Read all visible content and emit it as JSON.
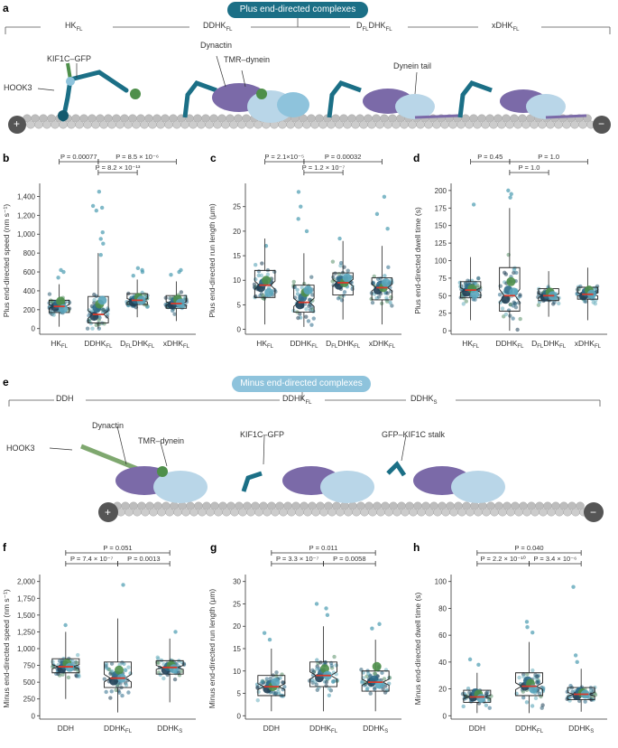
{
  "colors": {
    "teal": "#1b6f86",
    "teal_dark": "#145a6e",
    "teal_light": "#8ec3dc",
    "purple": "#7b6aa8",
    "light_blue": "#b9d6e8",
    "green": "#4e8f4a",
    "mt": "#bdbdbd",
    "red_median": "#d83a2a",
    "point_colors": [
      "#2e6b8a",
      "#4a9bb0",
      "#2f5f74",
      "#5a8f6a",
      "#1f3f55",
      "#6aaebd"
    ]
  },
  "panel_a": {
    "letter": "a",
    "banner": "Plus end-directed complexes",
    "group_labels": [
      "HK",
      "DDHK",
      "D",
      "xDHK"
    ],
    "group_label_subs": [
      "FL",
      "FL",
      "DHK",
      "FL"
    ],
    "group_label_d_sub": "FL",
    "annotations": [
      "KIF1C–GFP",
      "HOOK3",
      "Dynactin",
      "TMR–dynein",
      "Dynein tail"
    ],
    "plus_sign": "+",
    "minus_sign": "−"
  },
  "panel_e": {
    "letter": "e",
    "banner": "Minus end-directed complexes",
    "group_labels": [
      "DDH",
      "DDHK",
      "DDHK"
    ],
    "group_label_subs": [
      "",
      "FL",
      "S"
    ],
    "annotations": [
      "Dynactin",
      "TMR–dynein",
      "KIF1C–GFP",
      "GFP–KIF1C stalk",
      "HOOK3"
    ],
    "plus_sign": "+",
    "minus_sign": "−"
  },
  "chart_data": [
    {
      "id": "b",
      "type": "box",
      "ylabel": "Plus end-directed speed (nm s⁻¹)",
      "ylim": [
        -60,
        1500
      ],
      "yticks": [
        0,
        200,
        400,
        600,
        800,
        1000,
        1200,
        1400
      ],
      "ytick_labels": [
        "0",
        "200",
        "400",
        "600",
        "800",
        "1,000",
        "1,200",
        "1,400"
      ],
      "categories": [
        "HK",
        "DDHK",
        "D",
        "xDHK"
      ],
      "category_subs": [
        "FL",
        "FL",
        "DHK",
        "FL"
      ],
      "category_d_sub": "FL",
      "box_stats": [
        {
          "q1": 170,
          "median": 235,
          "q3": 300,
          "wlo": 20,
          "whi": 470,
          "mean": 245
        },
        {
          "q1": 60,
          "median": 150,
          "q3": 340,
          "wlo": 0,
          "whi": 800,
          "mean": 200
        },
        {
          "q1": 255,
          "median": 300,
          "q3": 370,
          "wlo": 120,
          "whi": 520,
          "mean": 310
        },
        {
          "q1": 215,
          "median": 265,
          "q3": 350,
          "wlo": 80,
          "whi": 500,
          "mean": 280
        }
      ],
      "outliers": [
        [
          600,
          620,
          540
        ],
        [
          1450,
          1300,
          1280,
          1250,
          950,
          900,
          1020,
          780
        ],
        [
          620,
          600,
          640,
          560
        ],
        [
          620,
          600,
          570
        ]
      ],
      "replicate_means": [
        [
          230,
          260,
          290,
          210
        ],
        [
          130,
          220,
          260,
          300
        ],
        [
          280,
          310,
          330,
          300
        ],
        [
          250,
          290,
          310,
          270
        ]
      ],
      "comparisons": [
        {
          "from": 0,
          "to": 1,
          "level": 0,
          "label": "P = 0.00077"
        },
        {
          "from": 1,
          "to": 3,
          "level": 0,
          "label": "P = 8.5 × 10⁻⁶"
        },
        {
          "from": 1,
          "to": 2,
          "level": 1,
          "label": "P = 8.2 × 10⁻¹³"
        }
      ]
    },
    {
      "id": "c",
      "type": "box",
      "ylabel": "Plus end-directed run length (μm)",
      "ylim": [
        -1,
        29
      ],
      "yticks": [
        0,
        5,
        10,
        15,
        20,
        25
      ],
      "ytick_labels": [
        "0",
        "5",
        "10",
        "15",
        "20",
        "25"
      ],
      "categories": [
        "HK",
        "DDHK",
        "D",
        "xDHK"
      ],
      "category_subs": [
        "FL",
        "FL",
        "DHK",
        "FL"
      ],
      "category_d_sub": "FL",
      "box_stats": [
        {
          "q1": 6.5,
          "median": 9,
          "q3": 12,
          "wlo": 1,
          "whi": 18.5,
          "mean": 9
        },
        {
          "q1": 3.5,
          "median": 5.5,
          "q3": 9,
          "wlo": 0.5,
          "whi": 15.5,
          "mean": 6.5
        },
        {
          "q1": 7,
          "median": 9.5,
          "q3": 11.5,
          "wlo": 2,
          "whi": 18,
          "mean": 9.5
        },
        {
          "q1": 6,
          "median": 8.5,
          "q3": 10.5,
          "wlo": 1,
          "whi": 17,
          "mean": 8.5
        }
      ],
      "outliers": [
        [
          17
        ],
        [
          28,
          25,
          22.5,
          20
        ],
        [
          18.5
        ],
        [
          27,
          23.5,
          20.5
        ]
      ],
      "replicate_means": [
        [
          8.5,
          9.5,
          10,
          7.5
        ],
        [
          5,
          6.5,
          7.5,
          8
        ],
        [
          9,
          10,
          9.5,
          10.5
        ],
        [
          8,
          9,
          8.5,
          9.5
        ]
      ],
      "comparisons": [
        {
          "from": 0,
          "to": 1,
          "level": 0,
          "label": "P = 2.1×10⁻⁵"
        },
        {
          "from": 1,
          "to": 3,
          "level": 0,
          "label": "P = 0.00032"
        },
        {
          "from": 1,
          "to": 2,
          "level": 1,
          "label": "P = 1.2 × 10⁻⁷"
        }
      ]
    },
    {
      "id": "d",
      "type": "box",
      "ylabel": "Plus end-directed dwell time (s)",
      "ylim": [
        -5,
        205
      ],
      "yticks": [
        0,
        25,
        50,
        75,
        100,
        125,
        150,
        175,
        200
      ],
      "ytick_labels": [
        "0",
        "25",
        "50",
        "75",
        "100",
        "125",
        "150",
        "175",
        "200"
      ],
      "categories": [
        "HK",
        "DDHK",
        "D",
        "xDHK"
      ],
      "category_subs": [
        "FL",
        "FL",
        "DHK",
        "FL"
      ],
      "category_d_sub": "FL",
      "box_stats": [
        {
          "q1": 47,
          "median": 58,
          "q3": 70,
          "wlo": 15,
          "whi": 105,
          "mean": 58
        },
        {
          "q1": 28,
          "median": 50,
          "q3": 90,
          "wlo": 0,
          "whi": 175,
          "mean": 60
        },
        {
          "q1": 43,
          "median": 50,
          "q3": 60,
          "wlo": 20,
          "whi": 85,
          "mean": 52
        },
        {
          "q1": 45,
          "median": 52,
          "q3": 62,
          "wlo": 15,
          "whi": 90,
          "mean": 54
        }
      ],
      "outliers": [
        [
          180
        ],
        [
          200,
          195,
          190
        ],
        [],
        []
      ],
      "replicate_means": [
        [
          55,
          62,
          60,
          52
        ],
        [
          45,
          58,
          70,
          55
        ],
        [
          48,
          52,
          55,
          50
        ],
        [
          50,
          55,
          58,
          52
        ]
      ],
      "comparisons": [
        {
          "from": 0,
          "to": 1,
          "level": 0,
          "label": "P = 0.45"
        },
        {
          "from": 1,
          "to": 3,
          "level": 0,
          "label": "P = 1.0"
        },
        {
          "from": 1,
          "to": 2,
          "level": 1,
          "label": "P = 1.0"
        }
      ]
    },
    {
      "id": "f",
      "type": "box",
      "ylabel": "Minus end-directed speed (nm s⁻¹)",
      "ylim": [
        -50,
        2050
      ],
      "yticks": [
        0,
        250,
        500,
        750,
        1000,
        1250,
        1500,
        1750,
        2000
      ],
      "ytick_labels": [
        "0",
        "250",
        "500",
        "750",
        "1,000",
        "1,250",
        "1,500",
        "1,750",
        "2,000"
      ],
      "categories": [
        "DDH",
        "DDHK",
        "DDHK"
      ],
      "category_subs": [
        "",
        "FL",
        "S"
      ],
      "box_stats": [
        {
          "q1": 640,
          "median": 730,
          "q3": 850,
          "wlo": 250,
          "whi": 1250,
          "mean": 740
        },
        {
          "q1": 420,
          "median": 560,
          "q3": 800,
          "wlo": 50,
          "whi": 1450,
          "mean": 600
        },
        {
          "q1": 620,
          "median": 720,
          "q3": 820,
          "wlo": 200,
          "whi": 1150,
          "mean": 710
        }
      ],
      "outliers": [
        [
          1350
        ],
        [
          1950
        ],
        [
          1250
        ]
      ],
      "replicate_means": [
        [
          700,
          760,
          780,
          720
        ],
        [
          520,
          600,
          680,
          560
        ],
        [
          680,
          730,
          750,
          700
        ]
      ],
      "comparisons": [
        {
          "from": 0,
          "to": 2,
          "level": 0,
          "label": "P = 0.051"
        },
        {
          "from": 0,
          "to": 1,
          "level": 1,
          "label": "P = 7.4 × 10⁻⁷"
        },
        {
          "from": 1,
          "to": 2,
          "level": 1,
          "label": "P = 0.0013"
        }
      ]
    },
    {
      "id": "g",
      "type": "box",
      "ylabel": "Minus end-directed run length (μm)",
      "ylim": [
        -0.75,
        30.75
      ],
      "yticks": [
        0,
        5,
        10,
        15,
        20,
        25,
        30
      ],
      "ytick_labels": [
        "0",
        "5",
        "10",
        "15",
        "20",
        "25",
        "30"
      ],
      "categories": [
        "DDH",
        "DDHK",
        "DDHK"
      ],
      "category_subs": [
        "",
        "FL",
        "S"
      ],
      "box_stats": [
        {
          "q1": 4.5,
          "median": 6.5,
          "q3": 9,
          "wlo": 1,
          "whi": 15,
          "mean": 6.8
        },
        {
          "q1": 6.5,
          "median": 9,
          "q3": 12,
          "wlo": 1,
          "whi": 20,
          "mean": 9.5
        },
        {
          "q1": 5.5,
          "median": 7.5,
          "q3": 10,
          "wlo": 1,
          "whi": 17,
          "mean": 8
        }
      ],
      "outliers": [
        [
          18.5,
          17
        ],
        [
          25,
          24,
          22.5
        ],
        [
          20.5,
          19.5
        ]
      ],
      "replicate_means": [
        [
          6,
          7,
          6.5,
          7.5
        ],
        [
          8.5,
          9.5,
          10.5,
          9
        ],
        [
          7.5,
          8,
          11,
          7
        ]
      ],
      "comparisons": [
        {
          "from": 0,
          "to": 2,
          "level": 0,
          "label": "P = 0.011"
        },
        {
          "from": 0,
          "to": 1,
          "level": 1,
          "label": "P = 3.3 × 10⁻⁷"
        },
        {
          "from": 1,
          "to": 2,
          "level": 1,
          "label": "P = 0.0058"
        }
      ]
    },
    {
      "id": "h",
      "type": "box",
      "ylabel": "Minus end-directed dwell time (s)",
      "ylim": [
        -2.5,
        102.5
      ],
      "yticks": [
        0,
        20,
        40,
        60,
        80,
        100
      ],
      "ytick_labels": [
        "0",
        "20",
        "40",
        "60",
        "80",
        "100"
      ],
      "categories": [
        "DDH",
        "DDHK",
        "DDHK"
      ],
      "category_subs": [
        "",
        "FL",
        "S"
      ],
      "box_stats": [
        {
          "q1": 10,
          "median": 14,
          "q3": 19,
          "wlo": 2,
          "whi": 32,
          "mean": 15
        },
        {
          "q1": 15,
          "median": 22,
          "q3": 32,
          "wlo": 2,
          "whi": 55,
          "mean": 24
        },
        {
          "q1": 12,
          "median": 16,
          "q3": 21,
          "wlo": 3,
          "whi": 35,
          "mean": 17
        }
      ],
      "outliers": [
        [
          42,
          38
        ],
        [
          70,
          66,
          62
        ],
        [
          96,
          45,
          40
        ]
      ],
      "replicate_means": [
        [
          14,
          17,
          16,
          13
        ],
        [
          22,
          26,
          24,
          20
        ],
        [
          15,
          18,
          17,
          16
        ]
      ],
      "comparisons": [
        {
          "from": 0,
          "to": 2,
          "level": 0,
          "label": "P = 0.040"
        },
        {
          "from": 0,
          "to": 1,
          "level": 1,
          "label": "P = 2.2 × 10⁻¹⁰"
        },
        {
          "from": 1,
          "to": 2,
          "level": 1,
          "label": "P = 3.4 × 10⁻⁶"
        }
      ]
    }
  ]
}
